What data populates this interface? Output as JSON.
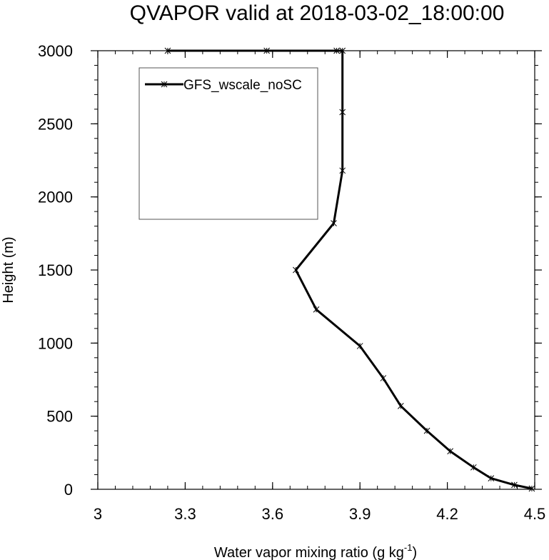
{
  "chart_data": {
    "type": "line",
    "title": "QVAPOR valid at 2018-03-02_18:00:00",
    "xlabel": "Water vapor mixing ratio (g kg",
    "xlabel_sup": "-1",
    "xlabel_end": ")",
    "ylabel": "Height (m)",
    "xlim": [
      3.0,
      4.5
    ],
    "ylim": [
      0,
      3000
    ],
    "xticks": [
      3,
      3.3,
      3.6,
      3.9,
      4.2,
      4.5
    ],
    "xtick_labels": [
      "3",
      "3.3",
      "3.6",
      "3.9",
      "4.2",
      "4.5"
    ],
    "yticks": [
      0,
      500,
      1000,
      1500,
      2000,
      2500,
      3000
    ],
    "ytick_labels": [
      "0",
      "500",
      "1000",
      "1500",
      "2000",
      "2500",
      "3000"
    ],
    "grid": false,
    "legend_position": "top-left",
    "series": [
      {
        "name": "GFS_wscale_noSC",
        "color": "#000000",
        "width": 3,
        "markers": true,
        "x": [
          4.49,
          4.43,
          4.35,
          4.29,
          4.21,
          4.13,
          4.04,
          3.98,
          3.9,
          3.75,
          3.68,
          3.81,
          3.84,
          3.84,
          3.84,
          3.82,
          3.58,
          3.24
        ],
        "y": [
          5,
          30,
          75,
          150,
          260,
          400,
          570,
          760,
          980,
          1230,
          1500,
          1820,
          2180,
          2580,
          3000,
          3000,
          3000,
          3000
        ]
      }
    ]
  }
}
